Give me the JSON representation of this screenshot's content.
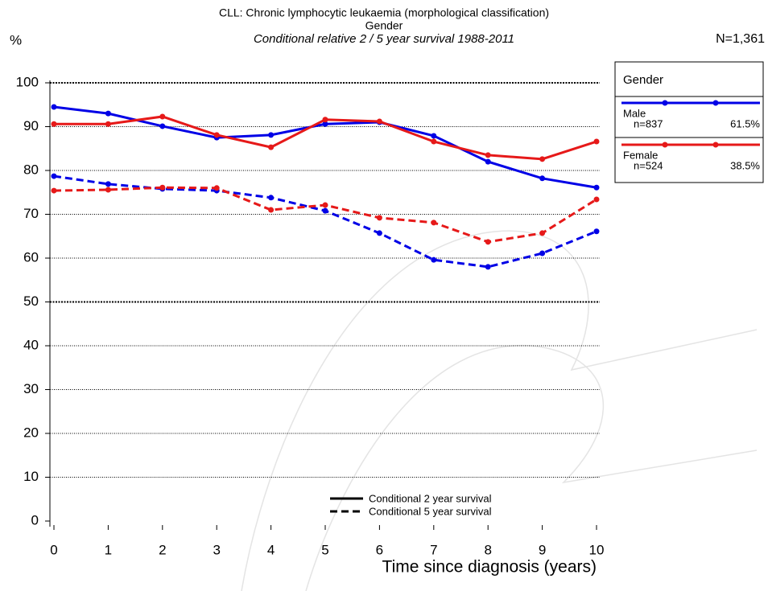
{
  "chart_data": {
    "type": "line",
    "title_lines": [
      "CLL: Chronic lymphocytic leukaemia (morphological classification)",
      "Gender"
    ],
    "subtitle": "Conditional relative 2 / 5 year survival 1988-2011",
    "total_label": "N=1,361",
    "y_label": "%",
    "x_label": "Time since diagnosis (years)",
    "legend_title": "Gender",
    "x": [
      0,
      1,
      2,
      3,
      4,
      5,
      6,
      7,
      8,
      9,
      10
    ],
    "xlim": [
      0,
      10
    ],
    "xticks": [
      0,
      1,
      2,
      3,
      4,
      5,
      6,
      7,
      8,
      9,
      10
    ],
    "ylim": [
      0,
      100
    ],
    "yticks": [
      0,
      10,
      20,
      30,
      40,
      50,
      60,
      70,
      80,
      90,
      100
    ],
    "grid": true,
    "line_styles": [
      {
        "name": "Conditional 2 year survival",
        "dash": "solid"
      },
      {
        "name": "Conditional 5 year survival",
        "dash": "dashed"
      }
    ],
    "groups": [
      {
        "name": "Male",
        "n_label": "n=837",
        "share_label": "61.5%",
        "color": "#0000e6",
        "series": [
          [
            94.5,
            93.0,
            90.1,
            87.5,
            88.1,
            90.6,
            91.0,
            87.9,
            82.0,
            78.2,
            76.1
          ],
          [
            78.7,
            76.9,
            75.8,
            75.4,
            73.8,
            70.8,
            65.7,
            59.6,
            58.0,
            61.1,
            66.1
          ]
        ]
      },
      {
        "name": "Female",
        "n_label": "n=524",
        "share_label": "38.5%",
        "color": "#e61919",
        "series": [
          [
            90.6,
            90.6,
            92.3,
            88.1,
            85.3,
            91.6,
            91.2,
            86.6,
            83.5,
            82.6,
            86.6
          ],
          [
            75.4,
            75.6,
            76.1,
            76.0,
            71.0,
            72.1,
            69.2,
            68.1,
            63.7,
            65.7,
            73.4
          ]
        ]
      }
    ]
  }
}
